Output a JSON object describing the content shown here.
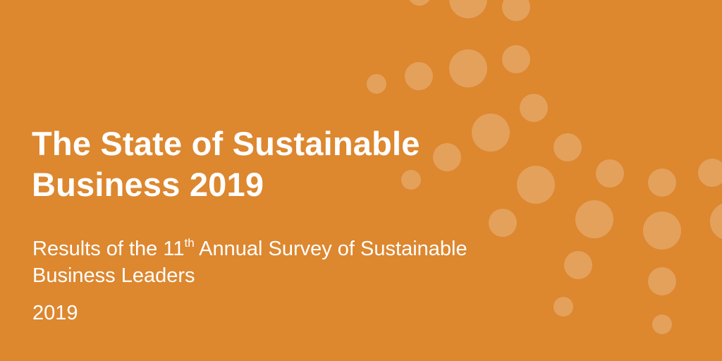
{
  "colors": {
    "background": "#dd872f",
    "text": "#ffffff",
    "dot": "#ffffff"
  },
  "cover": {
    "title_line1": "The State of Sustainable",
    "title_line2": "Business 2019",
    "subtitle_before_ordinal": "Results of the 11",
    "subtitle_ordinal_suffix": "th",
    "subtitle_after_ordinal": " Annual Survey of Sustainable",
    "subtitle_line2": "Business Leaders",
    "year": "2019"
  }
}
